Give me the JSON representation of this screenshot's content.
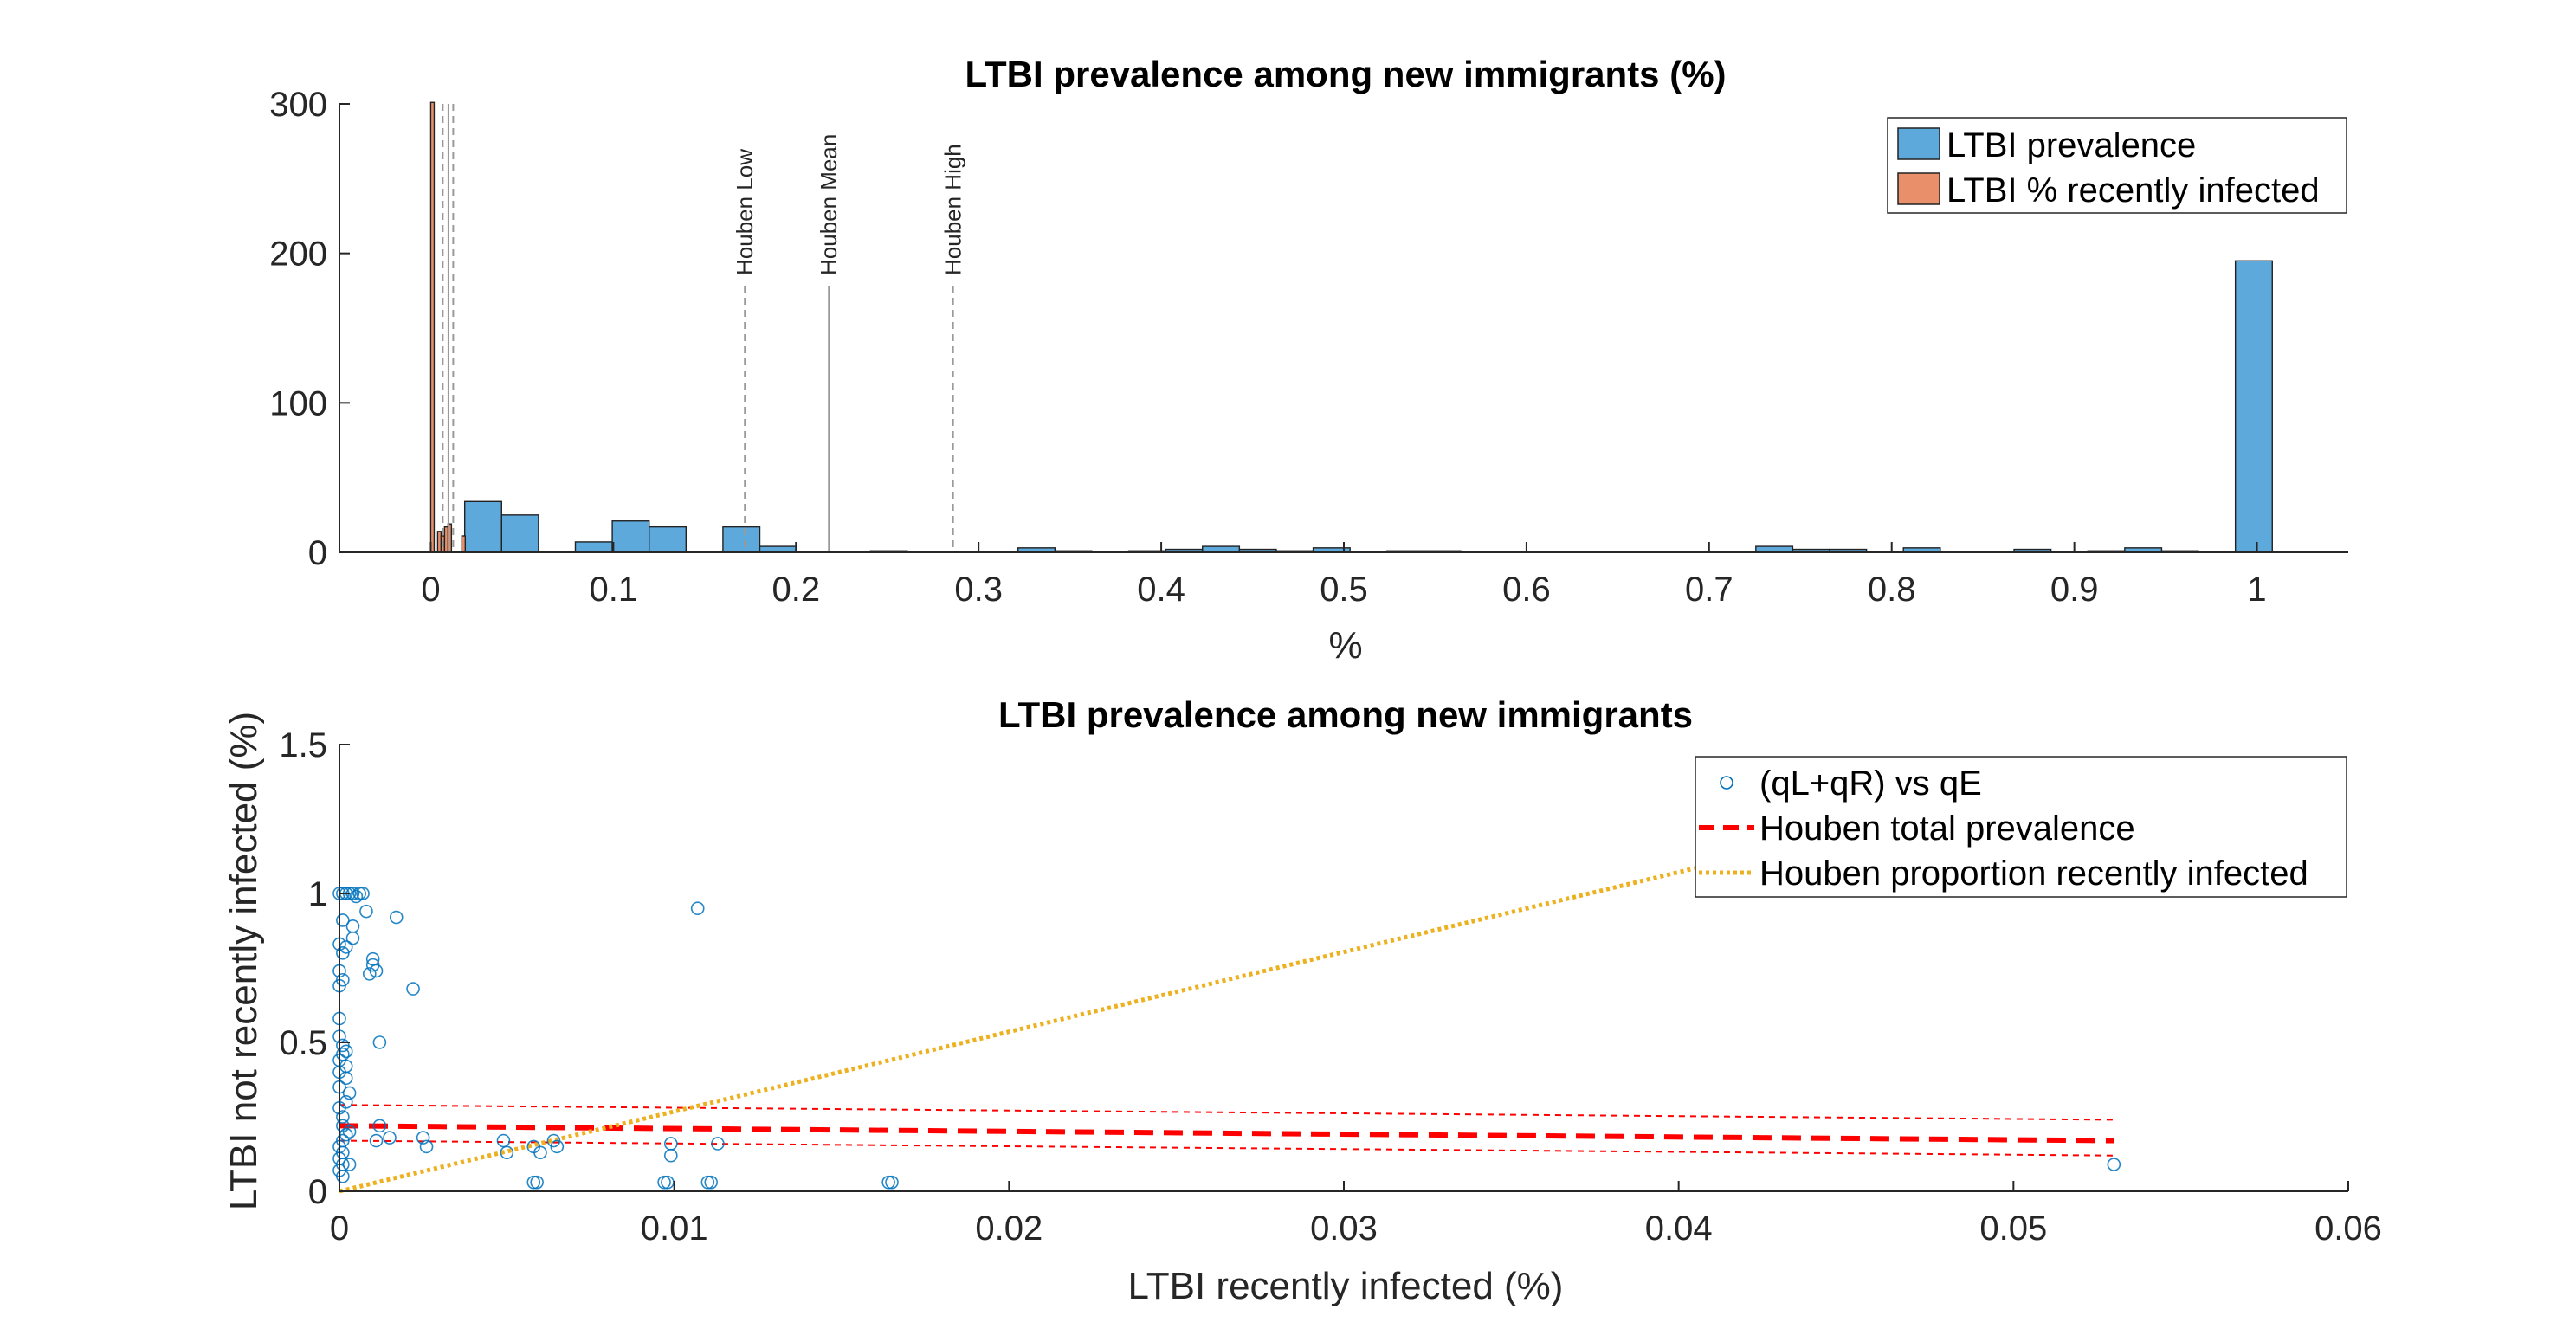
{
  "chart_data": [
    {
      "type": "histogram",
      "title": "LTBI prevalence among new immigrants (%)",
      "xlabel": "%",
      "ylabel": "",
      "xlim": [
        -0.05,
        1.05
      ],
      "ylim": [
        0,
        300
      ],
      "xticks": [
        0,
        0.1,
        0.2,
        0.3,
        0.4,
        0.5,
        0.6,
        0.7,
        0.8,
        0.9,
        1
      ],
      "xtick_labels": [
        "0",
        "0.1",
        "0.2",
        "0.3",
        "0.4",
        "0.5",
        "0.6",
        "0.7",
        "0.8",
        "0.9",
        "1"
      ],
      "yticks": [
        0,
        100,
        200,
        300
      ],
      "ytick_labels": [
        "0",
        "100",
        "200",
        "300"
      ],
      "grid": false,
      "legend_position": "top-right",
      "series": [
        {
          "name": "LTBI prevalence",
          "color": "#5ea9db",
          "bin_edges": [
            0.0186,
            0.0388,
            0.059,
            0.0792,
            0.0994,
            0.1196,
            0.1398,
            0.16,
            0.1802,
            0.2004,
            0.2206,
            0.2408,
            0.261,
            0.2812,
            0.3014,
            0.3216,
            0.3418,
            0.362,
            0.3822,
            0.4024,
            0.4226,
            0.4428,
            0.463,
            0.4832,
            0.5034,
            0.5236,
            0.5438,
            0.564,
            0.5842,
            0.6044,
            0.6246,
            0.6448,
            0.665,
            0.6852,
            0.7054,
            0.7256,
            0.7458,
            0.766,
            0.7862,
            0.8064,
            0.8266,
            0.8468,
            0.867,
            0.8872,
            0.9074,
            0.9276,
            0.9478,
            0.968,
            0.9882,
            1.0084
          ],
          "counts": [
            34,
            25,
            0,
            7,
            21,
            17,
            0,
            17,
            4,
            0,
            0,
            1,
            0,
            0,
            0,
            3,
            1,
            0,
            1,
            2,
            4,
            2,
            1,
            3,
            0,
            1,
            1,
            0,
            0,
            0,
            0,
            0,
            0,
            0,
            0,
            4,
            2,
            2,
            0,
            3,
            0,
            0,
            2,
            0,
            1,
            3,
            1,
            0,
            195
          ]
        },
        {
          "name": "LTBI % recently infected",
          "color": "#e9906a",
          "bin_edges": [
            0,
            0.00189,
            0.00378,
            0.00567,
            0.00756,
            0.00945,
            0.01134,
            0.01323,
            0.01512,
            0.01701,
            0.0189
          ],
          "counts": [
            301,
            0,
            14,
            11,
            17,
            19,
            0,
            0,
            0,
            11
          ]
        }
      ],
      "reference_lines": [
        {
          "label": "Houben Low",
          "x": 0.172,
          "style": "dashed"
        },
        {
          "label": "Houben Mean",
          "x": 0.218,
          "style": "solid"
        },
        {
          "label": "Houben High",
          "x": 0.286,
          "style": "dashed"
        },
        {
          "label": "",
          "x": 0.0066,
          "style": "dashed",
          "top": 300
        },
        {
          "label": "",
          "x": 0.0097,
          "style": "solid",
          "top": 300
        },
        {
          "label": "",
          "x": 0.0123,
          "style": "dashed",
          "top": 300
        }
      ]
    },
    {
      "type": "scatter",
      "title": "LTBI prevalence among new immigrants",
      "xlabel": "LTBI recently infected (%)",
      "ylabel": "LTBI not recently infected (%)",
      "xlim": [
        0,
        0.06
      ],
      "ylim": [
        0,
        1.5
      ],
      "xticks": [
        0,
        0.01,
        0.02,
        0.03,
        0.04,
        0.05,
        0.06
      ],
      "xtick_labels": [
        "0",
        "0.01",
        "0.02",
        "0.03",
        "0.04",
        "0.05",
        "0.06"
      ],
      "yticks": [
        0,
        0.5,
        1,
        1.5
      ],
      "ytick_labels": [
        "0",
        "0.5",
        "1",
        "1.5"
      ],
      "grid": false,
      "legend_position": "top-right",
      "series": [
        {
          "name": "(qL+qR) vs qE",
          "color": "#0072bd",
          "marker": "open-circle",
          "points": [
            [
              0.0,
              1.0
            ],
            [
              0.0001,
              1.0
            ],
            [
              0.0002,
              1.0
            ],
            [
              0.0004,
              1.0
            ],
            [
              0.0006,
              1.0
            ],
            [
              0.0003,
              1.0
            ],
            [
              0.0007,
              1.0
            ],
            [
              0.0005,
              0.99
            ],
            [
              0.0001,
              0.91
            ],
            [
              0.0004,
              0.89
            ],
            [
              0.0008,
              0.94
            ],
            [
              0.0004,
              0.85
            ],
            [
              0.0,
              0.83
            ],
            [
              0.0001,
              0.8
            ],
            [
              0.0002,
              0.82
            ],
            [
              0.001,
              0.78
            ],
            [
              0.001,
              0.76
            ],
            [
              0.0009,
              0.73
            ],
            [
              0.0011,
              0.74
            ],
            [
              0.0,
              0.74
            ],
            [
              0.0001,
              0.71
            ],
            [
              0.0,
              0.69
            ],
            [
              0.0017,
              0.92
            ],
            [
              0.0022,
              0.68
            ],
            [
              0.0012,
              0.5
            ],
            [
              0.0,
              0.58
            ],
            [
              0.0,
              0.52
            ],
            [
              0.0001,
              0.49
            ],
            [
              0.0002,
              0.47
            ],
            [
              0.0001,
              0.46
            ],
            [
              0.0,
              0.44
            ],
            [
              0.0002,
              0.42
            ],
            [
              0.0,
              0.4
            ],
            [
              0.0002,
              0.38
            ],
            [
              0.0,
              0.35
            ],
            [
              0.0003,
              0.33
            ],
            [
              0.0002,
              0.3
            ],
            [
              0.0,
              0.28
            ],
            [
              0.0001,
              0.25
            ],
            [
              0.0001,
              0.22
            ],
            [
              0.0002,
              0.19
            ],
            [
              0.0001,
              0.17
            ],
            [
              0.0,
              0.15
            ],
            [
              0.0001,
              0.13
            ],
            [
              0.0,
              0.11
            ],
            [
              0.0001,
              0.09
            ],
            [
              0.0,
              0.07
            ],
            [
              0.0001,
              0.05
            ],
            [
              0.0003,
              0.09
            ],
            [
              0.0003,
              0.2
            ],
            [
              0.0011,
              0.17
            ],
            [
              0.0012,
              0.22
            ],
            [
              0.0025,
              0.18
            ],
            [
              0.0026,
              0.15
            ],
            [
              0.0015,
              0.18
            ],
            [
              0.0107,
              0.95
            ],
            [
              0.0049,
              0.17
            ],
            [
              0.005,
              0.13
            ],
            [
              0.006,
              0.13
            ],
            [
              0.0064,
              0.17
            ],
            [
              0.0065,
              0.15
            ],
            [
              0.0058,
              0.15
            ],
            [
              0.0099,
              0.16
            ],
            [
              0.0099,
              0.12
            ],
            [
              0.0113,
              0.16
            ],
            [
              0.0097,
              0.03
            ],
            [
              0.0098,
              0.03
            ],
            [
              0.011,
              0.03
            ],
            [
              0.0111,
              0.03
            ],
            [
              0.0058,
              0.03
            ],
            [
              0.0059,
              0.03
            ],
            [
              0.0164,
              0.03
            ],
            [
              0.0165,
              0.03
            ],
            [
              0.053,
              0.09
            ]
          ]
        },
        {
          "name": "Houben total prevalence",
          "color": "#ff0000",
          "style": "dashed-thick",
          "x": [
            0,
            0.053
          ],
          "y": [
            0.22,
            0.17
          ]
        },
        {
          "name": "",
          "color": "#ff0000",
          "style": "dashed-thin",
          "x": [
            0,
            0.053
          ],
          "y": [
            0.29,
            0.24
          ]
        },
        {
          "name": "",
          "color": "#ff0000",
          "style": "dashed-thin",
          "x": [
            0,
            0.053
          ],
          "y": [
            0.17,
            0.12
          ]
        },
        {
          "name": "Houben proportion recently infected",
          "color": "#edb120",
          "style": "dotted",
          "x": [
            0,
            0.0448
          ],
          "y": [
            0,
            1.2
          ]
        }
      ]
    }
  ]
}
